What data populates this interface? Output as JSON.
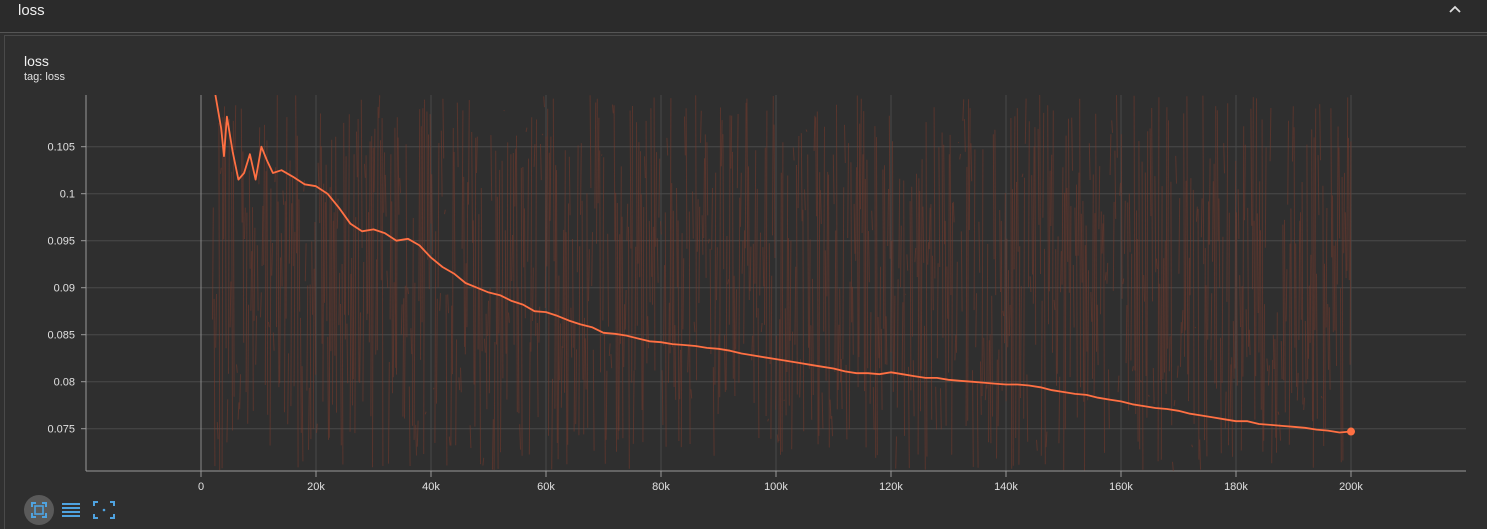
{
  "section": {
    "title": "loss",
    "collapse_icon": "chevron-up-icon"
  },
  "card": {
    "title": "loss",
    "tag": "tag: loss"
  },
  "toolbar": [
    {
      "name": "fit-domain-icon",
      "active": true
    },
    {
      "name": "toggle-log-scale-icon",
      "active": false
    },
    {
      "name": "expand-icon",
      "active": false
    }
  ],
  "colors": {
    "accent": "#ff7043",
    "raw": "#7a3a2c",
    "icon_blue": "#4fa3e0"
  },
  "chart_data": {
    "type": "line",
    "title": "loss",
    "xlabel": "",
    "ylabel": "",
    "xlim": [
      -20000,
      220000
    ],
    "ylim": [
      0.0705,
      0.1105
    ],
    "x_ticks": [
      0,
      20000,
      40000,
      60000,
      80000,
      100000,
      120000,
      140000,
      160000,
      180000,
      200000
    ],
    "x_tick_labels": [
      "0",
      "20k",
      "40k",
      "60k",
      "80k",
      "100k",
      "120k",
      "140k",
      "160k",
      "180k",
      "200k"
    ],
    "y_ticks": [
      0.075,
      0.08,
      0.085,
      0.09,
      0.095,
      0.1,
      0.105
    ],
    "y_tick_labels": [
      "0.075",
      "0.08",
      "0.085",
      "0.09",
      "0.095",
      "0.1",
      "0.105"
    ],
    "grid": true,
    "series": [
      {
        "name": "",
        "smoothed": true,
        "color": "#ff7043",
        "x": [
          2500,
          3500,
          4000,
          4500,
          5500,
          6500,
          7500,
          8500,
          9500,
          10500,
          11500,
          12500,
          14000,
          16000,
          18000,
          20000,
          22000,
          24000,
          26000,
          28000,
          30000,
          32000,
          34000,
          36000,
          38000,
          40000,
          42000,
          44000,
          46000,
          48000,
          50000,
          52000,
          54000,
          56000,
          58000,
          60000,
          62000,
          64000,
          66000,
          68000,
          70000,
          72000,
          74000,
          76000,
          78000,
          80000,
          82000,
          84000,
          86000,
          88000,
          90000,
          92000,
          94000,
          96000,
          98000,
          100000,
          102000,
          104000,
          106000,
          108000,
          110000,
          112000,
          114000,
          116000,
          118000,
          120000,
          122000,
          124000,
          126000,
          128000,
          130000,
          132000,
          134000,
          136000,
          138000,
          140000,
          142000,
          144000,
          146000,
          148000,
          150000,
          152000,
          154000,
          156000,
          158000,
          160000,
          162000,
          164000,
          166000,
          168000,
          170000,
          172000,
          174000,
          176000,
          178000,
          180000,
          182000,
          184000,
          186000,
          188000,
          190000,
          192000,
          194000,
          196000,
          198000,
          200000
        ],
        "y": [
          0.1105,
          0.107,
          0.104,
          0.1082,
          0.1045,
          0.1015,
          0.1022,
          0.1042,
          0.1015,
          0.105,
          0.1035,
          0.1022,
          0.1025,
          0.1018,
          0.101,
          0.1008,
          0.1,
          0.0985,
          0.0968,
          0.096,
          0.0962,
          0.0958,
          0.095,
          0.0952,
          0.0945,
          0.0932,
          0.0922,
          0.0915,
          0.0905,
          0.09,
          0.0895,
          0.0892,
          0.0886,
          0.0882,
          0.0875,
          0.0874,
          0.087,
          0.0865,
          0.0861,
          0.0858,
          0.0852,
          0.0851,
          0.0849,
          0.0846,
          0.0843,
          0.0842,
          0.084,
          0.0839,
          0.0838,
          0.0836,
          0.0835,
          0.0833,
          0.083,
          0.0828,
          0.0826,
          0.0824,
          0.0822,
          0.082,
          0.0818,
          0.0816,
          0.0814,
          0.0811,
          0.0809,
          0.0809,
          0.0808,
          0.081,
          0.0808,
          0.0806,
          0.0804,
          0.0804,
          0.0802,
          0.0801,
          0.08,
          0.0799,
          0.0798,
          0.0797,
          0.0797,
          0.0796,
          0.0794,
          0.0791,
          0.0789,
          0.0787,
          0.0786,
          0.0783,
          0.0781,
          0.0779,
          0.0776,
          0.0774,
          0.0772,
          0.0771,
          0.0769,
          0.0766,
          0.0764,
          0.0762,
          0.076,
          0.0758,
          0.0758,
          0.0755,
          0.0754,
          0.0753,
          0.0752,
          0.0751,
          0.0749,
          0.0748,
          0.0746,
          0.0747
        ]
      }
    ]
  }
}
